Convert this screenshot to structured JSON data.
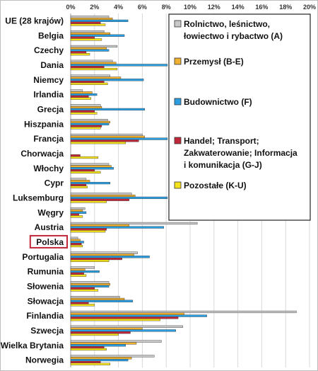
{
  "chart_data": {
    "type": "bar",
    "orientation": "horizontal",
    "title": "",
    "xlabel": "",
    "ylabel": "",
    "xlim": [
      0,
      20
    ],
    "tick_labels": [
      "0%",
      "2%",
      "4%",
      "6%",
      "8%",
      "10%",
      "12%",
      "14%",
      "16%",
      "18%",
      "20%"
    ],
    "grid": true,
    "legend_position": "right",
    "highlighted_category": "Polska",
    "categories": [
      "UE (28 krajów)",
      "Belgia",
      "Czechy",
      "Dania",
      "Niemcy",
      "Irlandia",
      "Grecja",
      "Hiszpania",
      "Francja",
      "Chorwacja",
      "Włochy",
      "Cypr",
      "Luksemburg",
      "Węgry",
      "Austria",
      "Polska",
      "Portugalia",
      "Rumunia",
      "Słowenia",
      "Słowacja",
      "Finlandia",
      "Szwecja",
      "Wielka Brytania",
      "Norwegia"
    ],
    "series": [
      {
        "name": "Rolnictwo, leśnictwo, łowiectwo i rybactwo (A)",
        "color": "#c8c8c8",
        "values": [
          3.2,
          2.8,
          3.9,
          3.5,
          3.3,
          1.0,
          2.5,
          3.1,
          6.0,
          0,
          3.2,
          1.3,
          5.1,
          1.2,
          10.6,
          0.6,
          5.6,
          2.0,
          3.2,
          4.1,
          18.9,
          9.4,
          7.6,
          7.0
        ]
      },
      {
        "name": "Przemysł (B-E)",
        "color": "#f0b030",
        "values": [
          3.5,
          3.3,
          3.0,
          3.8,
          4.2,
          1.8,
          2.6,
          3.3,
          6.2,
          0,
          3.4,
          1.6,
          5.4,
          1.0,
          4.9,
          0.8,
          5.3,
          1.2,
          3.3,
          4.5,
          9.5,
          6.0,
          5.5,
          5.1
        ]
      },
      {
        "name": "Budownictwo (F)",
        "color": "#2a9ee0",
        "values": [
          4.8,
          4.5,
          3.2,
          8.1,
          6.1,
          2.2,
          6.2,
          3.2,
          8.1,
          0,
          3.6,
          3.3,
          8.1,
          1.3,
          7.8,
          1.1,
          6.6,
          2.4,
          3.2,
          5.2,
          11.4,
          8.8,
          4.6,
          4.8
        ]
      },
      {
        "name": "Handel; Transport; Zakwaterowanie; Informacja i komunikacja (G-J)",
        "color": "#c0283a",
        "values": [
          2.5,
          2.0,
          1.3,
          2.8,
          2.8,
          1.5,
          2.0,
          2.6,
          5.7,
          0.8,
          2.0,
          1.3,
          4.9,
          0.7,
          3.0,
          0.9,
          4.3,
          1.1,
          2.0,
          1.5,
          9.0,
          5.0,
          2.8,
          2.5
        ]
      },
      {
        "name": "Pozostałe (K-U)",
        "color": "#f5e11c",
        "values": [
          2.9,
          2.6,
          1.6,
          3.9,
          3.1,
          1.7,
          2.2,
          2.5,
          4.6,
          2.3,
          2.5,
          1.4,
          3.0,
          1.0,
          2.9,
          1.0,
          3.2,
          1.3,
          2.3,
          2.0,
          7.5,
          4.0,
          3.0,
          3.3
        ]
      }
    ]
  }
}
